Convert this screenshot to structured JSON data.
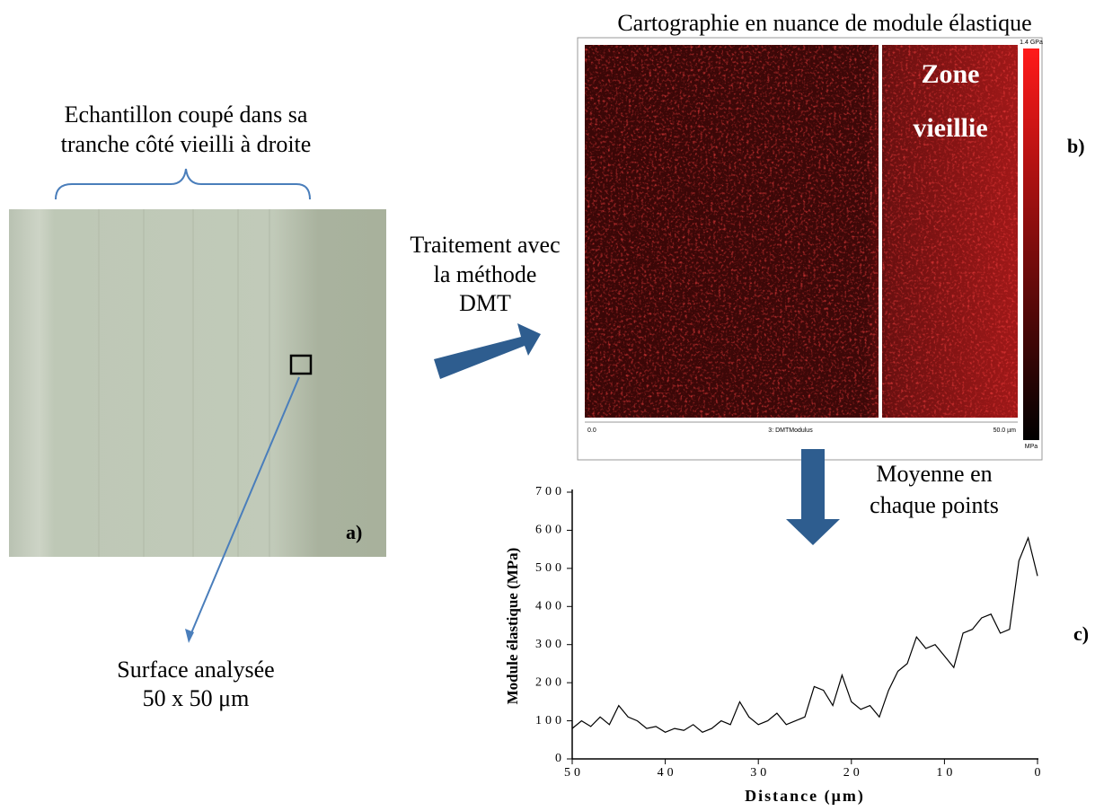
{
  "panel_a": {
    "title_lines": [
      "Echantillon coupé dans sa",
      "tranche côté vieilli à droite"
    ],
    "label": "a)",
    "callout_lines": [
      "Surface analysée",
      "50 x 50 μm"
    ]
  },
  "process": {
    "lines": [
      "Traitement avec",
      "la méthode",
      "DMT"
    ]
  },
  "panel_b": {
    "title": "Cartographie en nuance de module élastique",
    "zone_lines": [
      "Zone",
      "vieillie"
    ],
    "label": "b)",
    "scale_top": "1.4 GPa",
    "scale_bottom": "MPa",
    "axis_start": "0.0",
    "channel": "3: DMTModulus",
    "axis_end": "50.0 µm"
  },
  "panel_c": {
    "note_lines": [
      "Moyenne en",
      "chaque points"
    ],
    "label": "c)"
  },
  "chart_data": {
    "type": "line",
    "xlabel": "Distance (μm)",
    "ylabel": "Module élastique (MPa)",
    "x": [
      50,
      49,
      48,
      47,
      46,
      45,
      44,
      43,
      42,
      41,
      40,
      39,
      38,
      37,
      36,
      35,
      34,
      33,
      32,
      31,
      30,
      29,
      28,
      27,
      26,
      25,
      24,
      23,
      22,
      21,
      20,
      19,
      18,
      17,
      16,
      15,
      14,
      13,
      12,
      11,
      10,
      9,
      8,
      7,
      6,
      5,
      4,
      3,
      2,
      1,
      0
    ],
    "values": [
      80,
      100,
      85,
      110,
      90,
      140,
      110,
      100,
      80,
      85,
      70,
      80,
      75,
      90,
      70,
      80,
      100,
      90,
      150,
      110,
      90,
      100,
      120,
      90,
      100,
      110,
      190,
      180,
      140,
      220,
      150,
      130,
      140,
      110,
      180,
      230,
      250,
      320,
      290,
      300,
      270,
      240,
      330,
      340,
      370,
      380,
      330,
      340,
      520,
      580,
      480
    ],
    "color": "#000000",
    "xlim": [
      50,
      0
    ],
    "xticks": [
      50,
      40,
      30,
      20,
      10,
      0
    ],
    "ylim": [
      0,
      700
    ],
    "yticks": [
      0,
      100,
      200,
      300,
      400,
      500,
      600,
      700
    ]
  }
}
